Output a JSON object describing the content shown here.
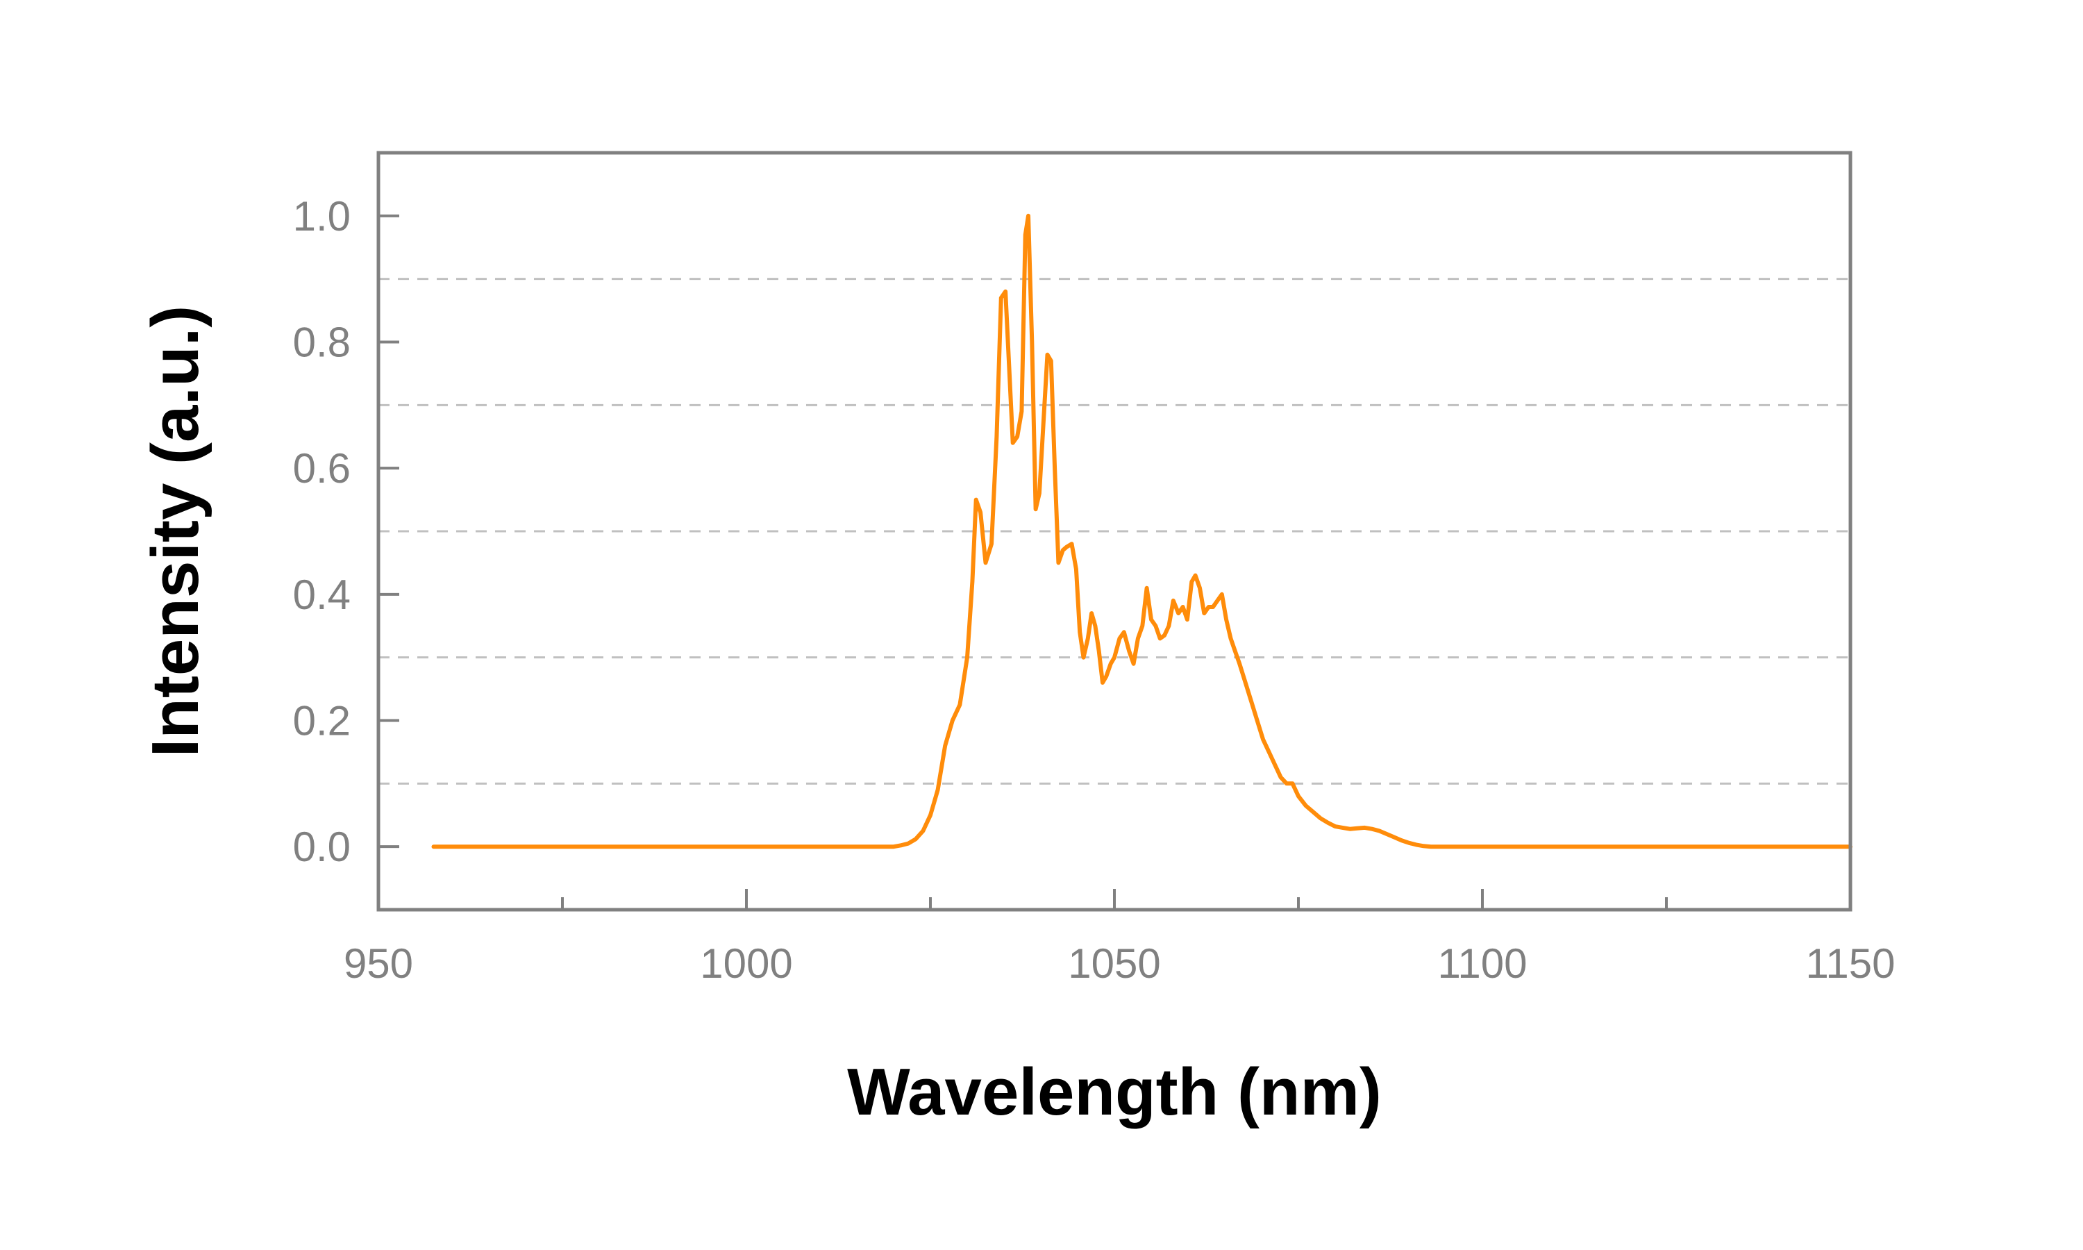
{
  "chart_data": {
    "type": "line",
    "title": "",
    "xlabel": "Wavelength (nm)",
    "ylabel": "Intensity (a.u.)",
    "xlim": [
      950,
      1150
    ],
    "ylim": [
      -0.1,
      1.1
    ],
    "x_ticks": [
      950,
      1000,
      1050,
      1100,
      1150
    ],
    "x_tick_labels": [
      "950",
      "1000",
      "1050",
      "1100",
      "1150"
    ],
    "x_minor_ticks": [
      975,
      1025,
      1075,
      1125
    ],
    "y_ticks": [
      0.0,
      0.2,
      0.4,
      0.6,
      0.8,
      1.0
    ],
    "y_tick_labels": [
      "0.0",
      "0.2",
      "0.4",
      "0.6",
      "0.8",
      "1.0"
    ],
    "y_gridlines": [
      0.1,
      0.3,
      0.5,
      0.7,
      0.9
    ],
    "grid": "horizontal dashed",
    "legend": "none",
    "colors": {
      "series": "#ff8c0a",
      "frame": "#808080",
      "grid": "#c0c0c0"
    },
    "series": [
      {
        "name": "",
        "x": [
          957.5,
          1000,
          1020,
          1021,
          1022,
          1023,
          1024,
          1025,
          1026,
          1027,
          1028,
          1029,
          1030,
          1030.7,
          1031.2,
          1031.8,
          1032.5,
          1033.3,
          1034,
          1034.6,
          1035.2,
          1035.7,
          1036.2,
          1036.8,
          1037.4,
          1037.9,
          1038.3,
          1038.8,
          1039.3,
          1039.8,
          1040.4,
          1040.9,
          1041.4,
          1041.9,
          1042.4,
          1043,
          1043.5,
          1044.2,
          1044.8,
          1045.3,
          1045.8,
          1046.4,
          1046.9,
          1047.4,
          1047.9,
          1048.4,
          1048.9,
          1049.5,
          1050,
          1050.7,
          1051.3,
          1052,
          1052.6,
          1053.2,
          1053.8,
          1054.4,
          1055,
          1055.6,
          1056.2,
          1056.8,
          1057.4,
          1058,
          1058.7,
          1059.3,
          1059.9,
          1060.5,
          1061,
          1061.6,
          1062.2,
          1062.8,
          1063.4,
          1064,
          1064.6,
          1065.2,
          1065.8,
          1066.4,
          1067,
          1067.8,
          1068.6,
          1069.4,
          1070.2,
          1071,
          1071.8,
          1072.6,
          1073.4,
          1074.2,
          1075,
          1076,
          1077,
          1078,
          1079,
          1080,
          1081,
          1082,
          1083,
          1084,
          1085,
          1086,
          1087,
          1088,
          1089,
          1090,
          1091,
          1092,
          1093,
          1100,
          1150
        ],
        "y": [
          0.0,
          0.0,
          0.0,
          0.002,
          0.005,
          0.012,
          0.025,
          0.05,
          0.09,
          0.16,
          0.2,
          0.225,
          0.3,
          0.42,
          0.55,
          0.53,
          0.45,
          0.48,
          0.65,
          0.87,
          0.88,
          0.76,
          0.64,
          0.65,
          0.69,
          0.97,
          1.0,
          0.8,
          0.535,
          0.56,
          0.68,
          0.78,
          0.77,
          0.6,
          0.45,
          0.47,
          0.475,
          0.48,
          0.44,
          0.34,
          0.3,
          0.33,
          0.37,
          0.35,
          0.31,
          0.26,
          0.27,
          0.29,
          0.3,
          0.33,
          0.34,
          0.31,
          0.29,
          0.33,
          0.35,
          0.41,
          0.36,
          0.35,
          0.33,
          0.335,
          0.35,
          0.39,
          0.37,
          0.38,
          0.36,
          0.42,
          0.43,
          0.41,
          0.37,
          0.38,
          0.38,
          0.39,
          0.4,
          0.36,
          0.33,
          0.31,
          0.29,
          0.26,
          0.23,
          0.2,
          0.17,
          0.15,
          0.13,
          0.11,
          0.1,
          0.1,
          0.08,
          0.065,
          0.055,
          0.045,
          0.038,
          0.032,
          0.03,
          0.028,
          0.029,
          0.03,
          0.028,
          0.025,
          0.02,
          0.015,
          0.01,
          0.006,
          0.003,
          0.001,
          0.0,
          0.0,
          0.0
        ]
      }
    ]
  }
}
